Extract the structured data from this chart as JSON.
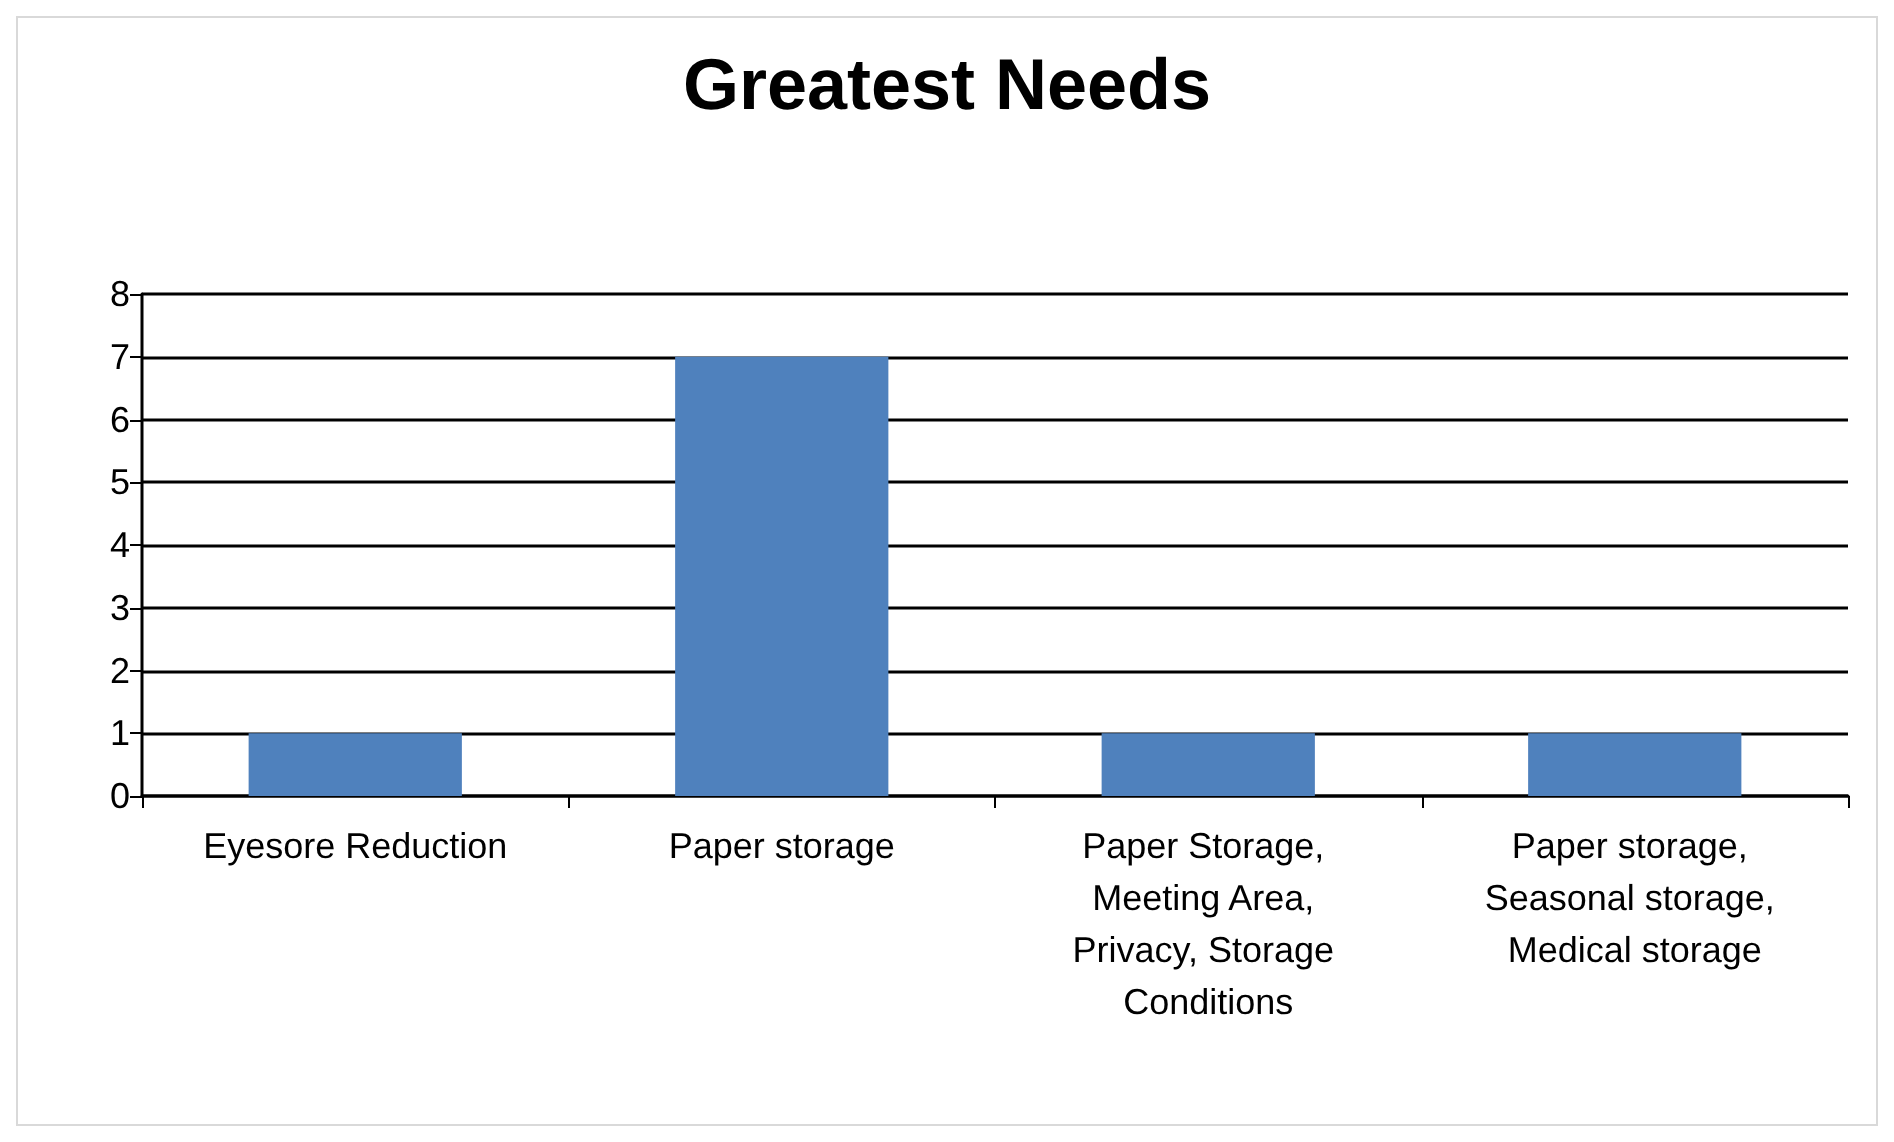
{
  "chart_data": {
    "type": "bar",
    "title": "Greatest Needs",
    "categories": [
      "Eyesore Reduction",
      "Paper storage",
      "Paper Storage, Meeting Area, Privacy, Storage Conditions",
      "Paper storage, Seasonal storage, Medical storage"
    ],
    "values": [
      1,
      7,
      1,
      1
    ],
    "color": "#4f81bd",
    "ylim": [
      0,
      8
    ],
    "yticks": [
      0,
      1,
      2,
      3,
      4,
      5,
      6,
      7,
      8
    ],
    "grid": true
  }
}
